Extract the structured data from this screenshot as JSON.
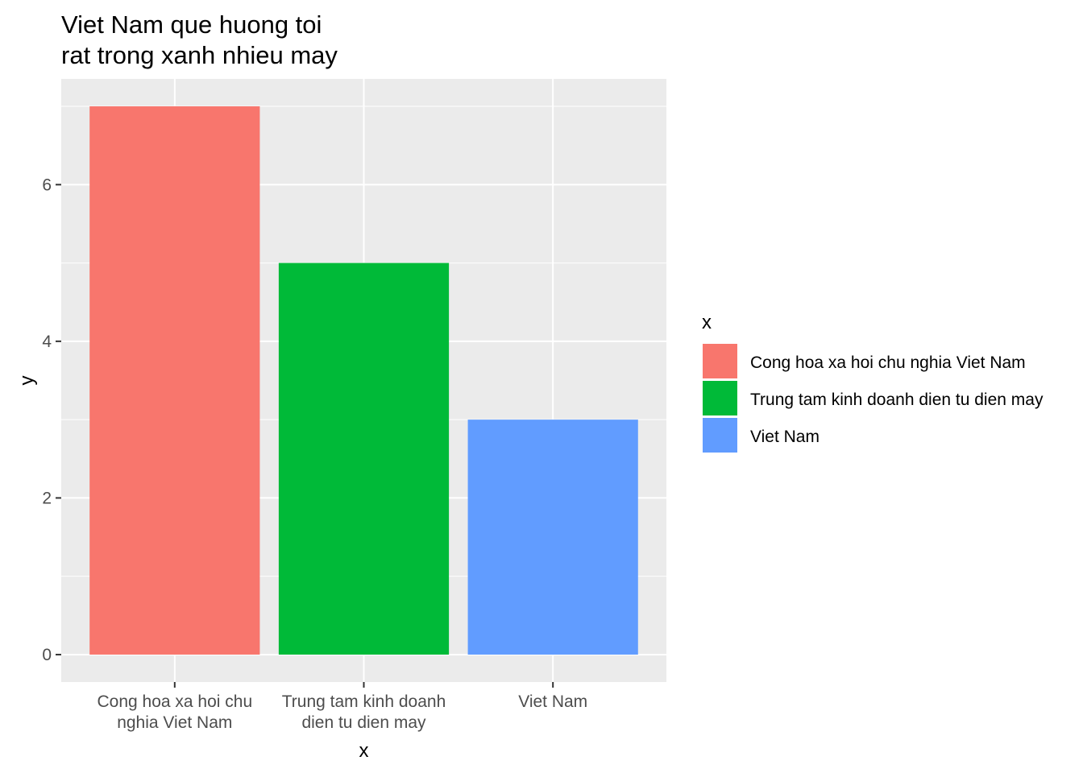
{
  "chart_data": {
    "type": "bar",
    "title": "Viet Nam que huong toi\nrat trong xanh nhieu may",
    "xlabel": "x",
    "ylabel": "y",
    "categories": [
      "Cong hoa xa hoi chu nghia Viet Nam",
      "Trung tam kinh doanh dien tu dien may",
      "Viet Nam"
    ],
    "category_tick_labels": [
      [
        "Cong hoa xa hoi chu",
        "nghia Viet Nam"
      ],
      [
        "Trung tam kinh doanh",
        "dien tu dien may"
      ],
      [
        "Viet Nam"
      ]
    ],
    "values": [
      7,
      5,
      3
    ],
    "colors": [
      "#F8766D",
      "#00BA38",
      "#619CFF"
    ],
    "ylim": [
      -0.35,
      7.35
    ],
    "y_ticks": [
      0,
      2,
      4,
      6
    ],
    "y_minor_ticks": [
      1,
      3,
      5,
      7
    ],
    "grid": true,
    "panel_background": "#EBEBEB",
    "grid_color": "#FFFFFF",
    "legend": {
      "title": "x",
      "placement": "right",
      "entries": [
        "Cong hoa xa hoi chu nghia Viet Nam",
        "Trung tam kinh doanh dien tu dien may",
        "Viet Nam"
      ]
    }
  }
}
